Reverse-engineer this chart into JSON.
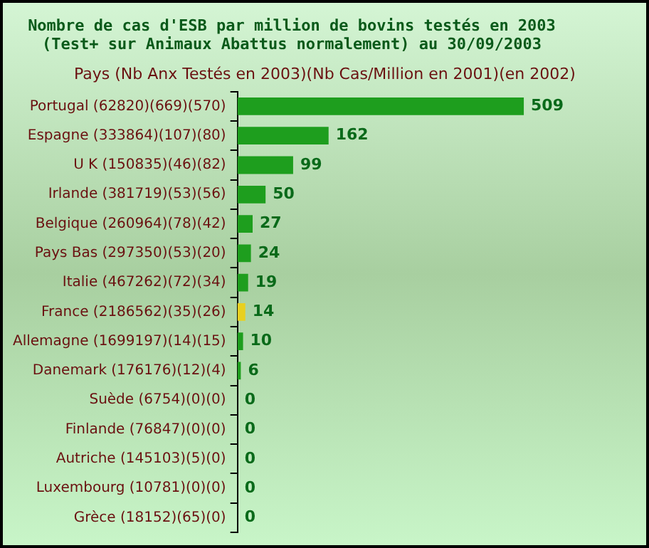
{
  "chart_data": {
    "type": "bar",
    "orientation": "horizontal",
    "title": "Nombre de cas d'ESB par million de bovins testés en 2003\n(Test+ sur Animaux Abattus normalement) au 30/09/2003",
    "ylabel": "Pays (Nb Anx Testés en 2003)(Nb Cas/Million en 2001)(en 2002)",
    "categories": [
      "Portugal (62820)(669)(570)",
      "Espagne (333864)(107)(80)",
      "U K (150835)(46)(82)",
      "Irlande (381719)(53)(56)",
      "Belgique (260964)(78)(42)",
      "Pays Bas (297350)(53)(20)",
      "Italie (467262)(72)(34)",
      "France (2186562)(35)(26)",
      "Allemagne (1699197)(14)(15)",
      "Danemark (176176)(12)(4)",
      "Suède (6754)(0)(0)",
      "Finlande (76847)(0)(0)",
      "Autriche (145103)(5)(0)",
      "Luxembourg (10781)(0)(0)",
      "Grèce (18152)(65)(0)"
    ],
    "values": [
      509,
      162,
      99,
      50,
      27,
      24,
      19,
      14,
      10,
      6,
      0,
      0,
      0,
      0,
      0
    ],
    "colors": [
      "#1e9e1e",
      "#1e9e1e",
      "#1e9e1e",
      "#1e9e1e",
      "#1e9e1e",
      "#1e9e1e",
      "#1e9e1e",
      "#e8d020",
      "#1e9e1e",
      "#1e9e1e",
      "#1e9e1e",
      "#1e9e1e",
      "#1e9e1e",
      "#1e9e1e",
      "#1e9e1e"
    ],
    "data_labels": true,
    "tick_labels": "y",
    "grid": false,
    "legend": false
  }
}
